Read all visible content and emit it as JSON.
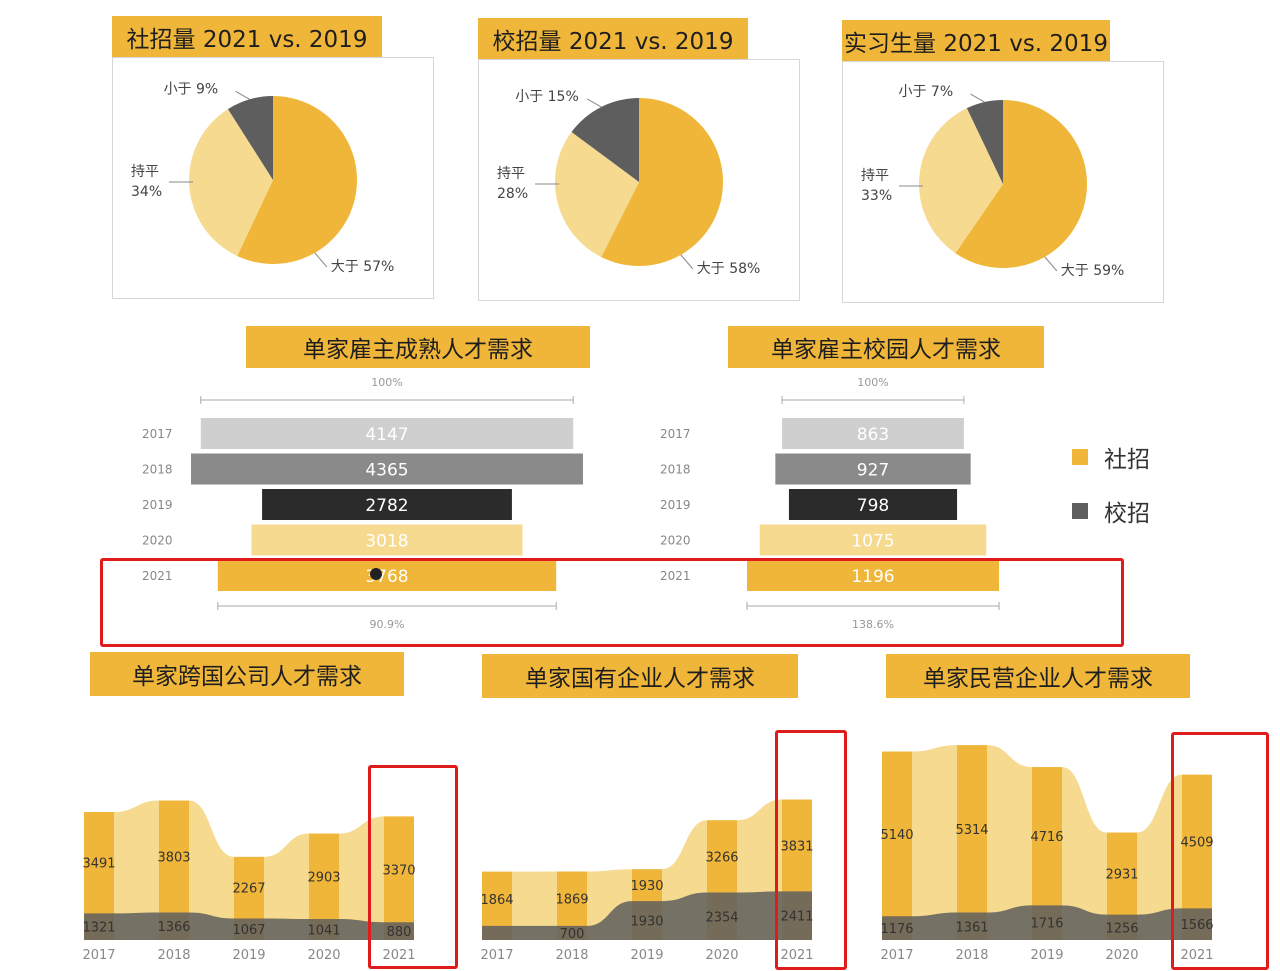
{
  "colors": {
    "gold": "#f0b63a",
    "light": "#f5da90",
    "dark": "#5e5e5e",
    "black": "#2b2b2b",
    "grey_light": "#cfcfcf",
    "grey_mid": "#8a8a8a"
  },
  "pies": [
    {
      "title": "社招量 2021 vs. 2019",
      "slices": [
        {
          "label": "大于",
          "pct": "57%",
          "value": 57
        },
        {
          "label": "持平",
          "pct": "34%",
          "value": 34
        },
        {
          "label": "小于",
          "pct": "9%",
          "value": 9
        }
      ]
    },
    {
      "title": "校招量 2021 vs. 2019",
      "slices": [
        {
          "label": "大于",
          "pct": "58%",
          "value": 58
        },
        {
          "label": "持平",
          "pct": "28%",
          "value": 28
        },
        {
          "label": "小于",
          "pct": "15%",
          "value": 15
        }
      ]
    },
    {
      "title": "实习生量 2021 vs. 2019",
      "slices": [
        {
          "label": "大于",
          "pct": "59%",
          "value": 59
        },
        {
          "label": "持平",
          "pct": "33%",
          "value": 33
        },
        {
          "label": "小于",
          "pct": "7%",
          "value": 7
        }
      ]
    }
  ],
  "funnels": [
    {
      "title": "单家雇主成熟人才需求",
      "top_pct": "100%",
      "bottom_pct": "90.9%",
      "rows": [
        {
          "year": "2017",
          "value": 4147,
          "label": "4147"
        },
        {
          "year": "2018",
          "value": 4365,
          "label": "4365"
        },
        {
          "year": "2019",
          "value": 2782,
          "label": "2782"
        },
        {
          "year": "2020",
          "value": 3018,
          "label": "3018"
        },
        {
          "year": "2021",
          "value": 3768,
          "label": "3768"
        }
      ]
    },
    {
      "title": "单家雇主校园人才需求",
      "top_pct": "100%",
      "bottom_pct": "138.6%",
      "rows": [
        {
          "year": "2017",
          "value": 863,
          "label": "863"
        },
        {
          "year": "2018",
          "value": 927,
          "label": "927"
        },
        {
          "year": "2019",
          "value": 798,
          "label": "798"
        },
        {
          "year": "2020",
          "value": 1075,
          "label": "1075"
        },
        {
          "year": "2021",
          "value": 1196,
          "label": "1196"
        }
      ]
    }
  ],
  "legend": [
    {
      "label": "社招",
      "color": "#f0b63a"
    },
    {
      "label": "校招",
      "color": "#5e5e5e"
    }
  ],
  "chart_data": [
    {
      "type": "pie",
      "title": "社招量 2021 vs. 2019",
      "categories": [
        "大于",
        "持平",
        "小于"
      ],
      "values": [
        57,
        34,
        9
      ]
    },
    {
      "type": "pie",
      "title": "校招量 2021 vs. 2019",
      "categories": [
        "大于",
        "持平",
        "小于"
      ],
      "values": [
        58,
        28,
        15
      ]
    },
    {
      "type": "pie",
      "title": "实习生量 2021 vs. 2019",
      "categories": [
        "大于",
        "持平",
        "小于"
      ],
      "values": [
        59,
        33,
        7
      ]
    },
    {
      "type": "bar",
      "title": "单家雇主成熟人才需求",
      "categories": [
        "2017",
        "2018",
        "2019",
        "2020",
        "2021"
      ],
      "values": [
        4147,
        4365,
        2782,
        3018,
        3768
      ],
      "annotations": [
        "100%",
        "90.9%"
      ]
    },
    {
      "type": "bar",
      "title": "单家雇主校园人才需求",
      "categories": [
        "2017",
        "2018",
        "2019",
        "2020",
        "2021"
      ],
      "values": [
        863,
        927,
        798,
        1075,
        1196
      ],
      "annotations": [
        "100%",
        "138.6%"
      ]
    },
    {
      "type": "area",
      "title": "单家跨国公司人才需求",
      "categories": [
        "2017",
        "2018",
        "2019",
        "2020",
        "2021"
      ],
      "series": [
        {
          "name": "社招",
          "values": [
            3491,
            3803,
            2267,
            2903,
            3370
          ]
        },
        {
          "name": "校招",
          "values": [
            1321,
            1366,
            1067,
            1041,
            880
          ]
        }
      ]
    },
    {
      "type": "area",
      "title": "单家国有企业人才需求",
      "categories": [
        "2017",
        "2018",
        "2019",
        "2020",
        "2021"
      ],
      "series": [
        {
          "name": "社招",
          "values": [
            1864,
            1869,
            1930,
            3266,
            3831
          ]
        },
        {
          "name": "校招",
          "values": [
            700,
            700,
            1930,
            2354,
            2411
          ]
        }
      ]
    },
    {
      "type": "area",
      "title": "单家民营企业人才需求",
      "categories": [
        "2017",
        "2018",
        "2019",
        "2020",
        "2021"
      ],
      "series": [
        {
          "name": "社招",
          "values": [
            5140,
            5314,
            4716,
            2931,
            4509
          ]
        },
        {
          "name": "校招",
          "values": [
            1176,
            1361,
            1716,
            1256,
            1566
          ]
        }
      ]
    }
  ],
  "streams": [
    {
      "title": "单家跨国公司人才需求",
      "years": [
        "2017",
        "2018",
        "2019",
        "2020",
        "2021"
      ],
      "top_labels": [
        "3491",
        "3803",
        "2267",
        "2903",
        "3370"
      ],
      "bottom_labels": [
        "1321",
        "1366",
        "1067",
        "1041",
        "880"
      ],
      "top": [
        3491,
        3803,
        2267,
        2903,
        3370
      ],
      "bottom": [
        1321,
        1366,
        1067,
        1041,
        880
      ],
      "max": 6000
    },
    {
      "title": "单家国有企业人才需求",
      "years": [
        "2017",
        "2018",
        "2019",
        "2020",
        "2021"
      ],
      "top_labels": [
        "1864",
        "1869",
        "1930",
        "3266",
        "3831"
      ],
      "bottom_labels": [
        "",
        "700",
        "1930",
        "2354",
        "2411"
      ],
      "top": [
        1864,
        1869,
        1930,
        3266,
        3831
      ],
      "bottom": [
        700,
        700,
        1930,
        2354,
        2411
      ],
      "max": 6000
    },
    {
      "title": "单家民营企业人才需求",
      "years": [
        "2017",
        "2018",
        "2019",
        "2020",
        "2021"
      ],
      "top_labels": [
        "5140",
        "5314",
        "4716",
        "2931",
        "4509"
      ],
      "bottom_labels": [
        "1176",
        "1361",
        "1716",
        "1256",
        "1566"
      ],
      "top": [
        5140,
        5314,
        4716,
        2931,
        4509
      ],
      "bottom": [
        1176,
        1361,
        1716,
        1256,
        1566
      ],
      "max": 6000
    }
  ]
}
